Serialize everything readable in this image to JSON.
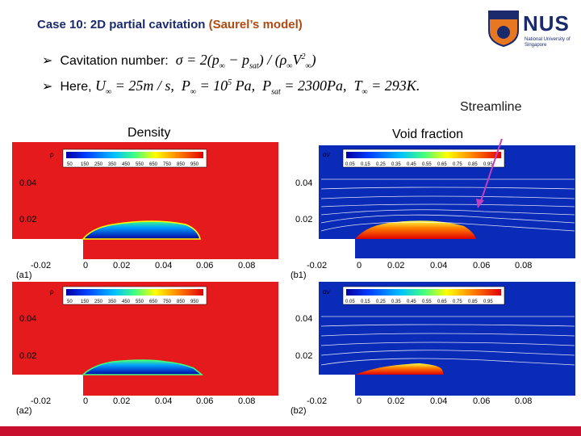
{
  "slide": {
    "title_prefix": "Case 10: 2D partial cavitation ",
    "title_model": "(Saurel’s model)",
    "bullet1_label": "Cavitation number:",
    "bullet2_label": "Here,",
    "streamline_label": "Streamline",
    "density_label": "Density",
    "void_label": "Void fraction"
  },
  "logo": {
    "name": "NUS",
    "subtitle": "National University of Singapore"
  },
  "panels": {
    "a1": "(a1)",
    "a2": "(a2)",
    "b1": "(b1)",
    "b2": "(b2)",
    "density_var": "ρ",
    "void_var": "αv",
    "density_legend": [
      "50",
      "150",
      "250",
      "350",
      "450",
      "550",
      "650",
      "750",
      "850",
      "950"
    ],
    "void_legend": [
      "0.05",
      "0.15",
      "0.25",
      "0.35",
      "0.45",
      "0.55",
      "0.65",
      "0.75",
      "0.85",
      "0.95"
    ],
    "y_ticks": [
      "0.04",
      "0.02"
    ],
    "x_ticks": [
      "-0.02",
      "0",
      "0.02",
      "0.04",
      "0.06",
      "0.08"
    ]
  },
  "colors": {
    "title": "#1a2a6c",
    "model": "#b04a12",
    "bottom_bar": "#c8102e",
    "arrow": "#c040c0"
  }
}
